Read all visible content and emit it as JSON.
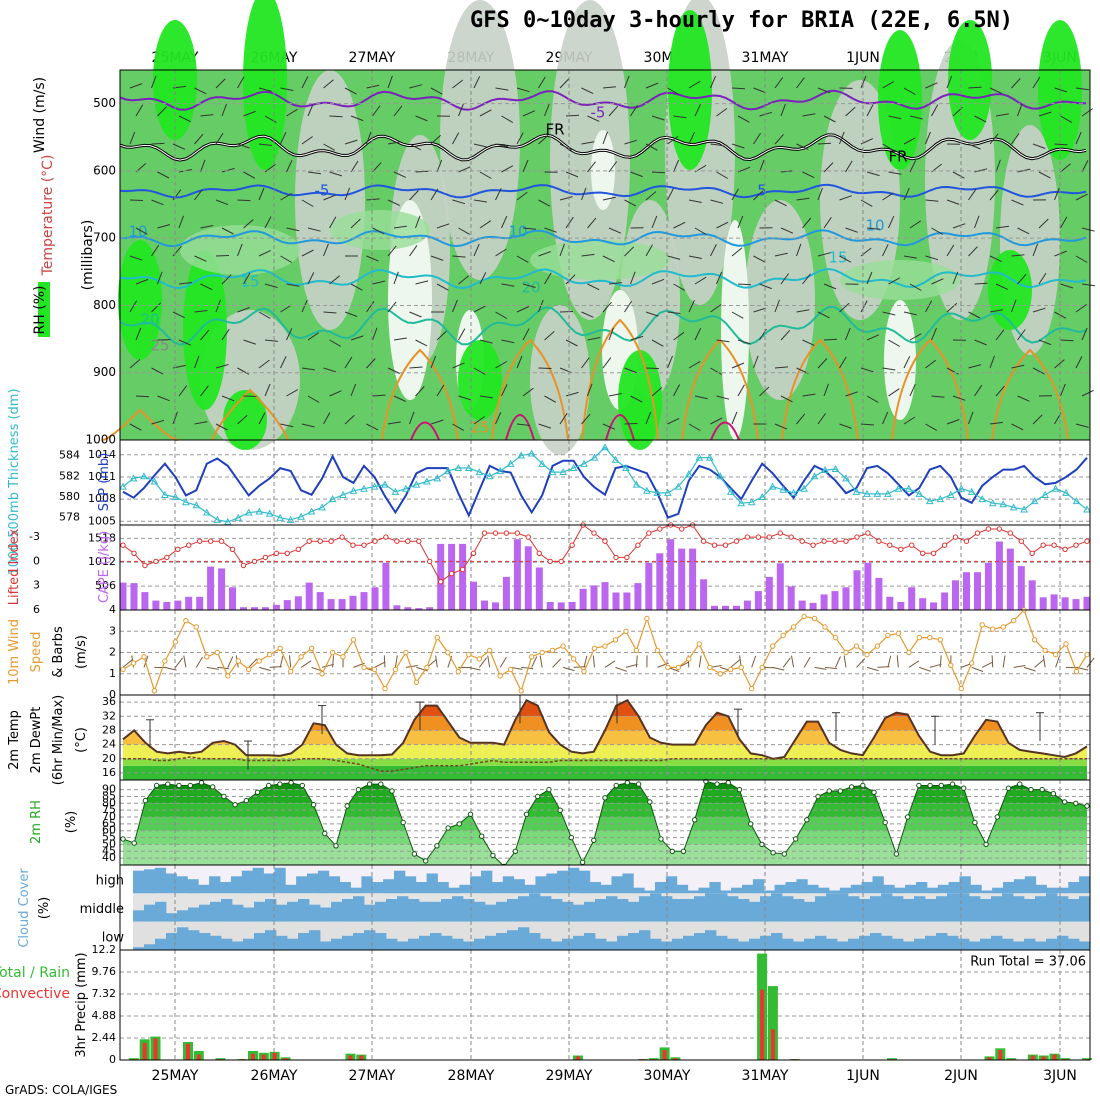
{
  "title": "GFS 0~10day 3-hourly for BRIA (22E, 6.5N)",
  "footer": "GrADS: COLA/IGES",
  "dates": [
    "25MAY",
    "26MAY",
    "27MAY",
    "28MAY",
    "29MAY",
    "30MAY",
    "31MAY",
    "1JUN",
    "2JUN",
    "3JUN"
  ],
  "colors": {
    "rh_bright": "#22e622",
    "rh_mid": "#66cc66",
    "rh_light": "#99dd99",
    "rh_grey": "#c8d2c8",
    "rh_white": "#eef7ee",
    "slp": "#1f3fbf",
    "thickness": "#33bbcc",
    "lifted": "#dd3333",
    "cape": "#bb66ee",
    "wind": "#e69a2e",
    "barb": "#7a5a3a",
    "cloud": "#6aaad8",
    "precip_total": "#33bb33",
    "precip_conv": "#ee3333"
  },
  "chart_data": [
    {
      "type": "heatmap",
      "ylabel": "(millibars)",
      "legend_labels": [
        "Wind (m/s)",
        "Temperature (°C)",
        "RH (%)"
      ],
      "y_ticks": [
        500,
        600,
        700,
        800,
        900,
        1000
      ],
      "ylim": [
        1000,
        450
      ],
      "temperature_contour_labels": [
        "-5",
        "FR",
        "FR",
        "-5",
        "5",
        "10",
        "10",
        "10",
        "15",
        "15",
        "20",
        "20",
        "25",
        "25"
      ]
    },
    {
      "type": "line",
      "ylabel_left": "1000-500mb Thickness (dm)",
      "ylabel_right": "SLP (mb)",
      "left_ticks": [
        578,
        580,
        582,
        584
      ],
      "right_ticks": [
        1005,
        1008,
        1011,
        1014
      ],
      "ylim_thickness": [
        577.3,
        585.5
      ],
      "ylim_slp": [
        1004.5,
        1016.0
      ],
      "series": [
        {
          "name": "SLP (mb)",
          "axis": "right",
          "values": [
            1009.0,
            1008.2,
            1009.5,
            1011.2,
            1012.8,
            1011.0,
            1008.5,
            1009.2,
            1012.8,
            1013.5,
            1012.5,
            1010.5,
            1008.5,
            1009.8,
            1010.8,
            1012.2,
            1011.8,
            1009.2,
            1008.6,
            1010.8,
            1013.8,
            1011.0,
            1010.2,
            1012.5,
            1011.0,
            1008.4,
            1006.2,
            1008.5,
            1011.5,
            1012.2,
            1012.2,
            1012.2,
            1008.8,
            1005.8,
            1009.2,
            1012.5,
            1011.8,
            1011.6,
            1008.5,
            1006.2,
            1008.5,
            1012.5,
            1013.2,
            1013.2,
            1011.0,
            1009.6,
            1008.6,
            1012.2,
            1012.5,
            1012.0,
            1011.5,
            1008.8,
            1005.5,
            1006.0,
            1010.5,
            1012.5,
            1012.0,
            1011.0,
            1009.5,
            1008.0,
            1010.5,
            1012.8,
            1011.5,
            1009.8,
            1008.2,
            1010.5,
            1012.5,
            1011.8,
            1010.5,
            1008.8,
            1009.5,
            1012.2,
            1012.5,
            1011.5,
            1010.0,
            1008.5,
            1009.5,
            1012.0,
            1012.5,
            1011.0,
            1008.2,
            1007.5,
            1009.8,
            1011.0,
            1012.0,
            1012.0,
            1012.5,
            1011.0,
            1010.0,
            1010.2,
            1011.0,
            1012.0,
            1013.6
          ]
        },
        {
          "name": "1000-500mb Thickness (dm)",
          "axis": "left",
          "values": [
            581.0,
            581.8,
            582.0,
            581.5,
            580.2,
            580.0,
            579.5,
            579.2,
            578.5,
            577.8,
            577.6,
            578.0,
            578.5,
            578.6,
            578.4,
            578.0,
            577.8,
            578.1,
            578.6,
            579.0,
            579.8,
            580.2,
            580.6,
            580.8,
            581.0,
            581.2,
            580.5,
            580.8,
            581.2,
            581.5,
            581.8,
            582.5,
            582.8,
            582.8,
            582.4,
            582.0,
            582.5,
            583.2,
            584.0,
            584.2,
            583.2,
            582.4,
            582.4,
            582.8,
            583.2,
            583.8,
            584.8,
            583.6,
            582.8,
            581.2,
            580.6,
            580.4,
            580.4,
            581.0,
            582.2,
            583.8,
            583.8,
            582.0,
            580.5,
            579.4,
            579.5,
            580.0,
            581.0,
            580.7,
            580.4,
            580.8,
            582.0,
            582.6,
            582.7,
            581.8,
            580.5,
            580.3,
            580.3,
            580.3,
            580.8,
            580.8,
            580.3,
            579.6,
            579.8,
            580.2,
            580.8,
            580.5,
            579.8,
            579.4,
            579.3,
            579.0,
            578.8,
            579.6,
            580.2,
            580.8,
            580.4,
            579.6,
            578.8
          ]
        }
      ]
    },
    {
      "type": "bar",
      "ylabel_left": "Lifted Index",
      "ylabel_right": "CAPE (J/kg)",
      "left_ticks": [
        -3,
        0,
        3,
        6
      ],
      "right_ticks": [
        4,
        506,
        1012,
        1518
      ],
      "cape_values": [
        580,
        570,
        380,
        200,
        170,
        200,
        280,
        280,
        920,
        880,
        480,
        60,
        60,
        60,
        110,
        210,
        290,
        580,
        380,
        230,
        230,
        300,
        380,
        480,
        1000,
        100,
        60,
        40,
        60,
        1400,
        1400,
        1400,
        600,
        200,
        160,
        700,
        1500,
        1350,
        900,
        170,
        160,
        170,
        450,
        520,
        590,
        370,
        370,
        570,
        1000,
        1200,
        1500,
        1300,
        1300,
        650,
        90,
        90,
        90,
        200,
        400,
        700,
        990,
        500,
        200,
        150,
        330,
        400,
        480,
        840,
        1000,
        680,
        280,
        170,
        480,
        250,
        160,
        370,
        630,
        800,
        800,
        1000,
        1450,
        1300,
        930,
        630,
        270,
        330,
        270,
        230,
        280
      ],
      "lifted_index": [
        -2.0,
        -1.0,
        0.5,
        0.0,
        -0.5,
        -1.5,
        -2.0,
        -2.5,
        -2.5,
        -2.5,
        -1.5,
        0.5,
        0.0,
        -0.5,
        -1.0,
        -1.0,
        -1.5,
        -2.5,
        -2.5,
        -2.5,
        -3.0,
        -2.0,
        -2.0,
        -2.5,
        -3.0,
        -2.5,
        -2.5,
        -2.5,
        0.0,
        2.5,
        1.5,
        1.0,
        -1.0,
        -3.5,
        -3.5,
        -3.5,
        -3.5,
        -3.0,
        -1.0,
        0.0,
        0.0,
        -2.0,
        -4.5,
        -3.5,
        -2.5,
        -0.5,
        -0.5,
        -2.0,
        -3.5,
        -4.0,
        -4.5,
        -4.0,
        -4.5,
        -2.5,
        -2.0,
        -2.0,
        -2.5,
        -3.0,
        -3.0,
        -3.0,
        -3.5,
        -3.0,
        -2.5,
        -2.0,
        -2.5,
        -2.5,
        -2.5,
        -3.0,
        -3.5,
        -2.5,
        -2.0,
        -1.5,
        -2.0,
        -1.0,
        -1.0,
        -2.0,
        -3.0,
        -2.5,
        -3.5,
        -4.0,
        -4.0,
        -3.5,
        -2.5,
        -1.0,
        -2.0,
        -2.0,
        -1.5,
        -2.0,
        -2.5
      ]
    },
    {
      "type": "line",
      "ylabel": "10m Wind Speed (m/s) & Barbs",
      "y_ticks": [
        0,
        1,
        2,
        3
      ],
      "ylim": [
        0,
        4.0
      ],
      "wind_speed": [
        1.2,
        1.5,
        1.8,
        0.2,
        1.6,
        2.5,
        3.5,
        3.2,
        1.8,
        2.0,
        0.9,
        1.6,
        1.2,
        1.6,
        1.9,
        2.2,
        1.1,
        1.8,
        2.2,
        1.0,
        2.0,
        1.8,
        2.6,
        1.3,
        1.2,
        0.3,
        1.2,
        2.0,
        0.6,
        1.3,
        2.7,
        2.0,
        1.1,
        1.9,
        1.7,
        2.1,
        0.9,
        1.2,
        0.2,
        1.8,
        2.0,
        2.1,
        2.3,
        1.7,
        1.1,
        2.2,
        2.3,
        2.6,
        3.0,
        2.1,
        3.6,
        2.1,
        1.3,
        1.3,
        1.7,
        2.4,
        1.3,
        1.0,
        1.2,
        1.3,
        0.3,
        1.3,
        2.3,
        2.8,
        3.2,
        3.7,
        3.6,
        3.2,
        2.7,
        2.0,
        2.3,
        1.9,
        2.3,
        2.8,
        2.9,
        2.0,
        2.7,
        2.7,
        2.6,
        1.4,
        0.3,
        1.5,
        3.3,
        3.1,
        3.2,
        3.5,
        4.0,
        2.6,
        2.1,
        1.9,
        2.4,
        1.1,
        1.9
      ]
    },
    {
      "type": "area",
      "ylabel": "2m Temp 2m DewPt (6hr Min/Max) (°C)",
      "y_ticks": [
        16,
        20,
        24,
        28,
        32,
        36
      ],
      "ylim": [
        14,
        38
      ],
      "temp": [
        25.5,
        28.0,
        24.5,
        22.0,
        21.5,
        22.0,
        21.5,
        22.0,
        24.5,
        25.0,
        24.0,
        21.0,
        21.0,
        21.0,
        20.8,
        21.5,
        24.0,
        30.0,
        29.5,
        24.0,
        21.5,
        21.0,
        21.0,
        21.0,
        21.2,
        24.5,
        31.0,
        35.0,
        35.0,
        30.5,
        26.0,
        24.5,
        24.5,
        24.5,
        24.0,
        31.0,
        36.5,
        35.0,
        27.5,
        24.0,
        22.0,
        21.5,
        22.0,
        28.0,
        35.0,
        36.5,
        32.0,
        26.0,
        24.5,
        24.0,
        24.0,
        24.0,
        29.5,
        33.0,
        32.0,
        25.5,
        21.5,
        21.0,
        20.0,
        20.5,
        25.5,
        30.5,
        30.5,
        24.5,
        22.5,
        21.5,
        21.0,
        26.0,
        31.5,
        33.0,
        32.5,
        26.5,
        22.0,
        21.0,
        21.0,
        21.5,
        26.5,
        31.0,
        30.5,
        24.5,
        22.5,
        22.0,
        21.5,
        21.0,
        20.5,
        21.5,
        23.5
      ],
      "dewpt": [
        20.0,
        20.0,
        20.0,
        19.5,
        19.5,
        20.0,
        20.5,
        20.0,
        20.0,
        20.0,
        20.0,
        19.5,
        19.5,
        19.5,
        19.5,
        19.5,
        20.0,
        20.0,
        20.0,
        19.5,
        19.0,
        18.5,
        17.5,
        16.5,
        16.5,
        17.0,
        17.5,
        18.0,
        18.0,
        18.0,
        18.0,
        18.5,
        19.0,
        19.5,
        19.0,
        19.0,
        19.0,
        19.0,
        19.0,
        19.5,
        19.5,
        19.5,
        19.5,
        19.5,
        19.5,
        19.5,
        19.5,
        19.5,
        19.5,
        20.0,
        20.0,
        20.0,
        20.0,
        20.0,
        20.0,
        20.0,
        20.0,
        20.0,
        20.0,
        20.0,
        20.0,
        20.0,
        20.0,
        20.0,
        20.0,
        20.0,
        20.0,
        20.0,
        20.0,
        20.0,
        20.0,
        20.0,
        20.0,
        20.0,
        20.0,
        20.0,
        20.0,
        20.0,
        20.0,
        20.0,
        20.0,
        20.0,
        20.0,
        20.0,
        20.0,
        20.0,
        20.0
      ],
      "max_whiskers": [
        31,
        25,
        35,
        36,
        38,
        38,
        34,
        33,
        32,
        33
      ]
    },
    {
      "type": "area",
      "ylabel": "2m RH (%)",
      "y_ticks": [
        40,
        45,
        50,
        55,
        60,
        65,
        70,
        75,
        80,
        85,
        90
      ],
      "ylim": [
        35,
        97
      ],
      "rh": [
        54,
        51,
        82,
        93,
        94,
        93,
        93,
        95,
        92,
        85,
        79,
        82,
        88,
        93,
        94,
        95,
        93,
        79,
        58,
        49,
        78,
        90,
        94,
        94,
        89,
        66,
        43,
        38,
        49,
        62,
        65,
        72,
        56,
        42,
        34,
        45,
        72,
        85,
        90,
        75,
        55,
        37,
        53,
        84,
        93,
        95,
        94,
        81,
        54,
        45,
        45,
        68,
        96,
        94,
        95,
        90,
        65,
        50,
        44,
        43,
        54,
        68,
        85,
        89,
        89,
        92,
        93,
        88,
        66,
        43,
        70,
        93,
        93,
        93,
        94,
        91,
        66,
        50,
        70,
        91,
        94,
        90,
        90,
        87,
        81,
        80,
        78
      ]
    },
    {
      "type": "heatmap",
      "ylabel": "Cloud Cover (%)",
      "layers": [
        "high",
        "middle",
        "low"
      ],
      "high": [
        80,
        85,
        90,
        70,
        60,
        50,
        30,
        60,
        40,
        60,
        80,
        90,
        70,
        90,
        30,
        60,
        70,
        80,
        60,
        40,
        20,
        60,
        40,
        50,
        80,
        60,
        40,
        70,
        40,
        20,
        30,
        60,
        80,
        40,
        60,
        50,
        30,
        60,
        70,
        80,
        90,
        80,
        40,
        30,
        60,
        70,
        20,
        10,
        40,
        60,
        30,
        10,
        20,
        40,
        10,
        20,
        30,
        50,
        10,
        30,
        40,
        50,
        30,
        20,
        10,
        20,
        30,
        40,
        60,
        30,
        20,
        30,
        40,
        20,
        30,
        40,
        60,
        30,
        10,
        20,
        40,
        50,
        60,
        30,
        20,
        20,
        40,
        60
      ],
      "middle": [
        40,
        60,
        70,
        30,
        40,
        50,
        60,
        70,
        80,
        60,
        50,
        70,
        80,
        60,
        70,
        80,
        60,
        50,
        70,
        80,
        90,
        60,
        70,
        80,
        90,
        80,
        70,
        70,
        80,
        90,
        80,
        70,
        60,
        70,
        80,
        90,
        100,
        90,
        80,
        70,
        60,
        70,
        80,
        90,
        80,
        70,
        90,
        100,
        90,
        80,
        80,
        90,
        100,
        100,
        90,
        80,
        70,
        90,
        100,
        90,
        80,
        70,
        90,
        100,
        100,
        90,
        80,
        90,
        100,
        90,
        80,
        90,
        80,
        90,
        100,
        100,
        90,
        80,
        90,
        100,
        90,
        80,
        90,
        100,
        90,
        80,
        90
      ],
      "low": [
        10,
        20,
        40,
        60,
        80,
        70,
        60,
        50,
        40,
        30,
        40,
        60,
        70,
        50,
        40,
        60,
        70,
        30,
        40,
        50,
        60,
        70,
        60,
        40,
        30,
        40,
        50,
        60,
        50,
        40,
        30,
        40,
        50,
        60,
        70,
        80,
        60,
        40,
        30,
        40,
        50,
        60,
        40,
        30,
        50,
        60,
        70,
        40,
        30,
        40,
        50,
        60,
        70,
        50,
        40,
        30,
        40,
        50,
        60,
        40,
        30,
        40,
        50,
        40,
        30,
        40,
        50,
        60,
        50,
        40,
        30,
        40,
        50,
        60,
        50,
        40,
        30,
        40,
        50,
        40,
        30,
        40,
        30,
        40,
        50,
        40,
        30
      ]
    },
    {
      "type": "bar",
      "ylabel": "3hr Precip (mm)",
      "legend_labels": [
        "Total / Rain",
        "Convective"
      ],
      "y_ticks": [
        0,
        2.44,
        4.88,
        7.32,
        9.76,
        12.2
      ],
      "ylim": [
        0,
        12.2
      ],
      "run_total": "Run Total = 37.06",
      "total": [
        0,
        0.2,
        2.3,
        2.6,
        0,
        0,
        2.0,
        1.0,
        0,
        0.2,
        0,
        0.1,
        1.0,
        0.8,
        0.9,
        0.3,
        0,
        0,
        0,
        0,
        0,
        0.7,
        0.6,
        0,
        0,
        0,
        0,
        0,
        0,
        0,
        0,
        0,
        0,
        0,
        0,
        0,
        0,
        0,
        0,
        0,
        0,
        0,
        0.5,
        0,
        0,
        0,
        0,
        0,
        0.1,
        0.2,
        1.4,
        0.3,
        0,
        0,
        0,
        0,
        0,
        0,
        0,
        11.8,
        8.2,
        0,
        0.1,
        0,
        0,
        0,
        0,
        0,
        0,
        0,
        0,
        0.2,
        0,
        0,
        0,
        0,
        0,
        0,
        0,
        0,
        0.4,
        1.3,
        0.2,
        0,
        0.6,
        0.5,
        0.7,
        0.2,
        0,
        0.2
      ],
      "convective": [
        0,
        0.1,
        1.9,
        2.4,
        0,
        0,
        1.8,
        0.6,
        0,
        0.1,
        0,
        0.1,
        0.7,
        0.6,
        0.8,
        0.2,
        0,
        0,
        0,
        0,
        0,
        0.5,
        0.5,
        0,
        0,
        0,
        0,
        0,
        0,
        0,
        0,
        0,
        0,
        0,
        0,
        0,
        0,
        0,
        0,
        0,
        0,
        0,
        0.4,
        0,
        0,
        0,
        0,
        0,
        0.1,
        0.1,
        1.1,
        0.2,
        0,
        0,
        0,
        0,
        0,
        0,
        0,
        7.8,
        3.4,
        0,
        0.1,
        0,
        0,
        0,
        0,
        0,
        0,
        0,
        0,
        0.1,
        0,
        0,
        0,
        0,
        0,
        0,
        0,
        0,
        0.3,
        1.1,
        0.1,
        0,
        0.5,
        0.4,
        0.6,
        0.1,
        0,
        0.1
      ]
    }
  ]
}
